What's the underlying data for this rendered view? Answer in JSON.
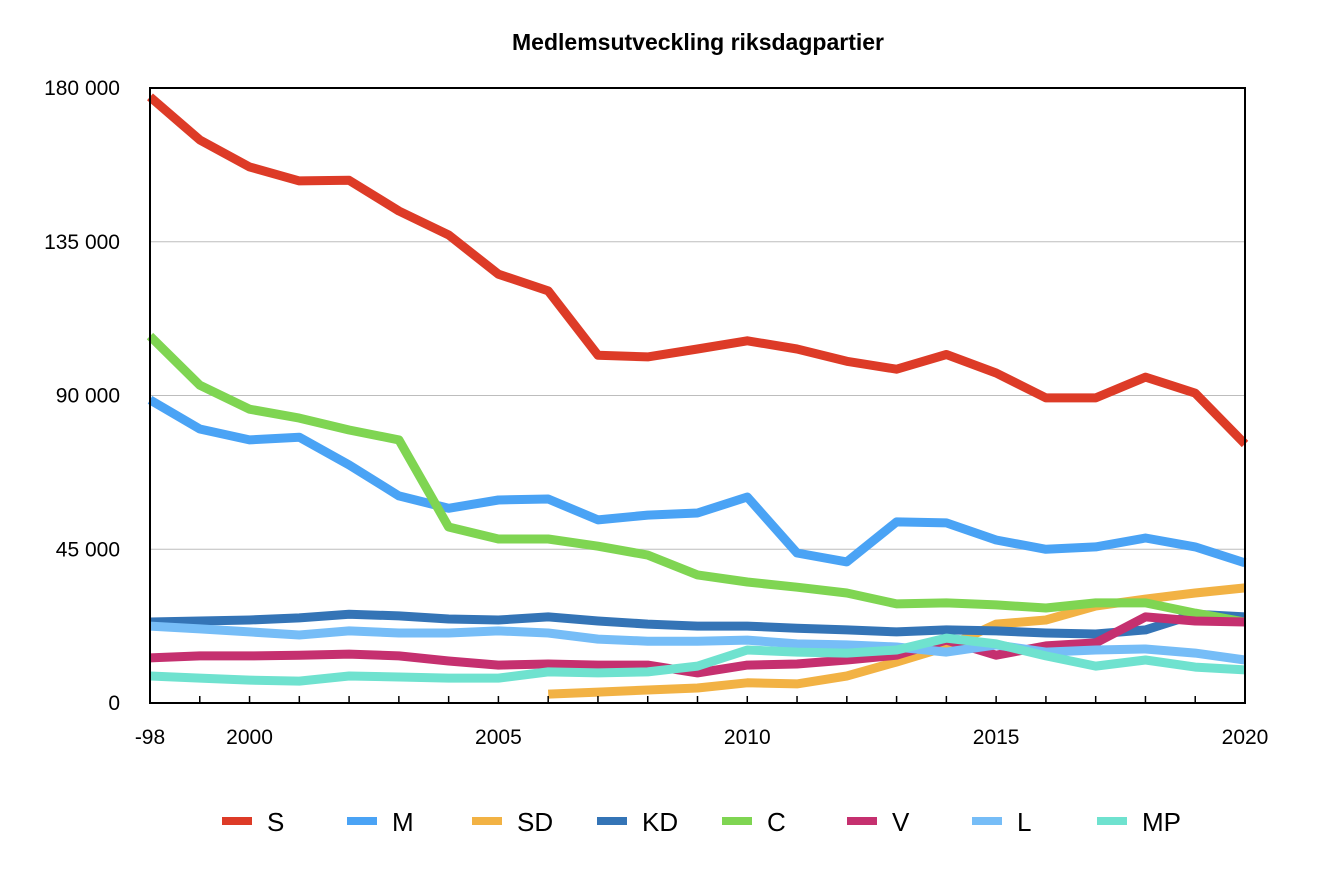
{
  "chart_data": {
    "type": "line",
    "title": "Medlemsutveckling riksdagpartier",
    "xlabel": "",
    "ylabel": "",
    "ylim": [
      0,
      180000
    ],
    "xlim": [
      1998,
      2020
    ],
    "grid": true,
    "legend_position": "bottom",
    "x": [
      1998,
      1999,
      2000,
      2001,
      2002,
      2003,
      2004,
      2005,
      2006,
      2007,
      2008,
      2009,
      2010,
      2011,
      2012,
      2013,
      2014,
      2015,
      2016,
      2017,
      2018,
      2019,
      2020
    ],
    "x_tick_labels": [
      {
        "year": 1998,
        "label": "-98"
      },
      {
        "year": 2000,
        "label": "2000"
      },
      {
        "year": 2005,
        "label": "2005"
      },
      {
        "year": 2010,
        "label": "2010"
      },
      {
        "year": 2015,
        "label": "2015"
      },
      {
        "year": 2020,
        "label": "2020"
      }
    ],
    "y_tick_labels": [
      {
        "value": 0,
        "label": "0"
      },
      {
        "value": 45000,
        "label": "45 000"
      },
      {
        "value": 90000,
        "label": "90 000"
      },
      {
        "value": 135000,
        "label": "135 000"
      },
      {
        "value": 180000,
        "label": "180 000"
      }
    ],
    "series": [
      {
        "name": "S",
        "color": "#dd3b27",
        "values": [
          177400,
          164800,
          156900,
          152800,
          153000,
          144000,
          137000,
          125500,
          120600,
          101800,
          101300,
          103600,
          106000,
          103600,
          100000,
          97700,
          102000,
          96600,
          89300,
          89300,
          95400,
          90700,
          75800
        ]
      },
      {
        "name": "M",
        "color": "#4aa3f5",
        "values": [
          88700,
          80200,
          77000,
          77800,
          69700,
          60600,
          57000,
          59400,
          59700,
          53600,
          55000,
          55600,
          60300,
          43900,
          41300,
          53000,
          52700,
          47700,
          45000,
          45700,
          48300,
          45700,
          41000
        ]
      },
      {
        "name": "SD",
        "color": "#f2b244",
        "values": [
          null,
          null,
          null,
          null,
          null,
          null,
          null,
          null,
          2600,
          3200,
          3800,
          4400,
          5900,
          5600,
          7900,
          12000,
          16400,
          23100,
          24300,
          28400,
          30400,
          32200,
          33700
        ]
      },
      {
        "name": "KD",
        "color": "#3474b6",
        "values": [
          23700,
          24000,
          24300,
          24900,
          26000,
          25500,
          24600,
          24300,
          25200,
          24000,
          23100,
          22500,
          22500,
          21900,
          21400,
          20800,
          21400,
          21100,
          20500,
          20200,
          21400,
          26000,
          25200
        ]
      },
      {
        "name": "C",
        "color": "#7fd552",
        "values": [
          107400,
          93000,
          86000,
          83400,
          79900,
          77000,
          51500,
          48000,
          48000,
          45900,
          43300,
          37500,
          35400,
          33900,
          32200,
          29000,
          29300,
          28700,
          27800,
          29300,
          29300,
          26300,
          23700
        ]
      },
      {
        "name": "V",
        "color": "#c5306f",
        "values": [
          13200,
          13800,
          13800,
          14000,
          14300,
          13800,
          12300,
          11100,
          11400,
          11100,
          11100,
          8800,
          11100,
          11400,
          12600,
          14000,
          18400,
          14000,
          16700,
          17600,
          25200,
          24000,
          23700
        ]
      },
      {
        "name": "L",
        "color": "#76bdf7",
        "values": [
          22500,
          21700,
          20800,
          19900,
          21100,
          20500,
          20500,
          21100,
          20500,
          18700,
          18100,
          18100,
          18400,
          17300,
          17000,
          16400,
          14900,
          17000,
          14900,
          15500,
          15800,
          14600,
          12600
        ]
      },
      {
        "name": "MP",
        "color": "#6fe2cf",
        "values": [
          7900,
          7300,
          6700,
          6400,
          7900,
          7600,
          7300,
          7300,
          9100,
          8800,
          9100,
          10800,
          15500,
          14900,
          14600,
          15500,
          19000,
          17300,
          13800,
          10800,
          12600,
          10500,
          9700
        ]
      }
    ]
  }
}
